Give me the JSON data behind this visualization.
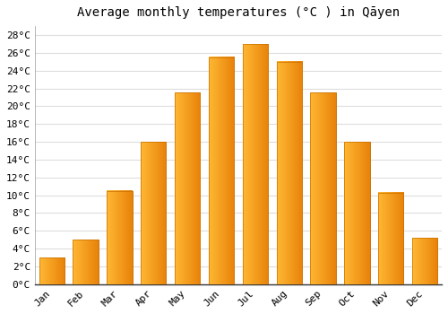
{
  "title": "Average monthly temperatures (°C ) in Qāyen",
  "months": [
    "Jan",
    "Feb",
    "Mar",
    "Apr",
    "May",
    "Jun",
    "Jul",
    "Aug",
    "Sep",
    "Oct",
    "Nov",
    "Dec"
  ],
  "values": [
    3,
    5,
    10.5,
    16,
    21.5,
    25.5,
    27,
    25,
    21.5,
    16,
    10.3,
    5.2
  ],
  "bar_color_left": "#FFB833",
  "bar_color_right": "#E8820A",
  "bar_edge_color": "#C87000",
  "ylim": [
    0,
    29
  ],
  "yticks": [
    0,
    2,
    4,
    6,
    8,
    10,
    12,
    14,
    16,
    18,
    20,
    22,
    24,
    26,
    28
  ],
  "ytick_labels": [
    "0°C",
    "2°C",
    "4°C",
    "6°C",
    "8°C",
    "10°C",
    "12°C",
    "14°C",
    "16°C",
    "18°C",
    "20°C",
    "22°C",
    "24°C",
    "26°C",
    "28°C"
  ],
  "background_color": "#ffffff",
  "grid_color": "#dddddd",
  "title_fontsize": 10,
  "tick_fontsize": 8,
  "font_family": "monospace",
  "bar_width": 0.75
}
